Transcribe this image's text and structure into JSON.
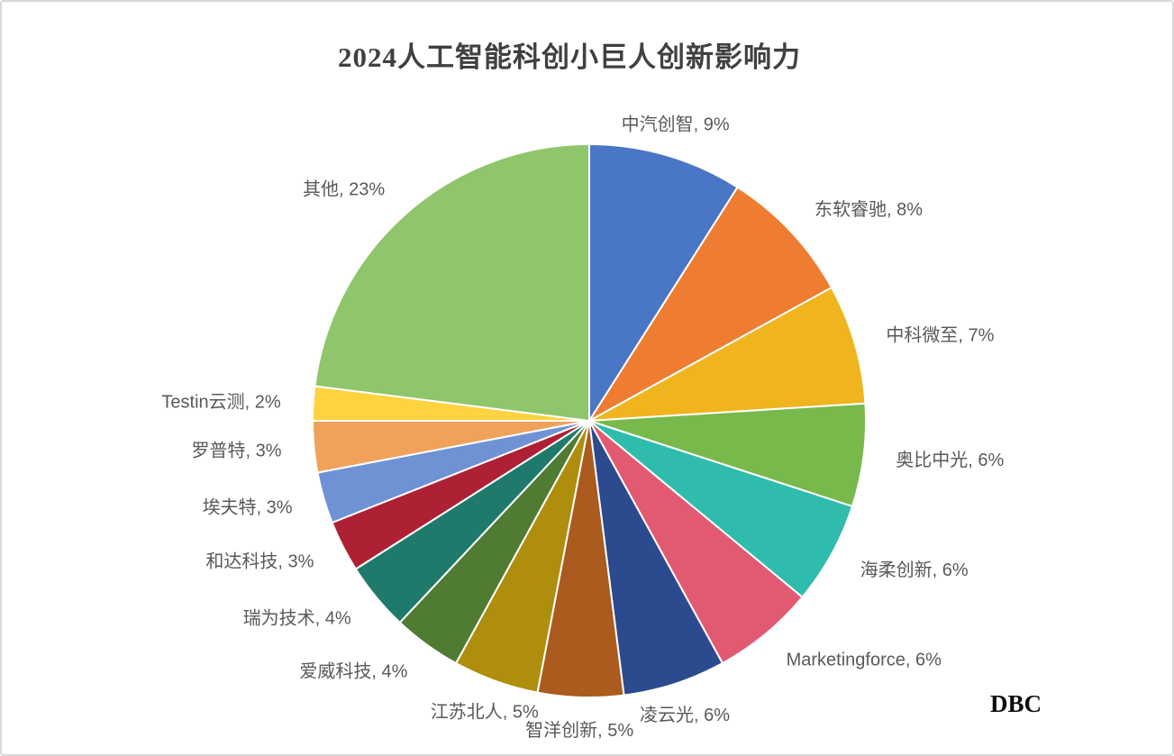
{
  "attribution": "DBC",
  "chart_data": {
    "type": "pie",
    "title": "2024人工智能科创小巨人创新影响力",
    "unit": "percent",
    "start_angle_deg": 0,
    "direction": "clockwise",
    "legend_position": "none",
    "labels_position": "outside",
    "label_format": "{name}, {value}%",
    "slices": [
      {
        "name": "中汽创智",
        "value": 9,
        "color": "#4A76C6"
      },
      {
        "name": "东软睿驰",
        "value": 8,
        "color": "#EE7D31"
      },
      {
        "name": "中科微至",
        "value": 7,
        "color": "#F0B51E"
      },
      {
        "name": "奥比中光",
        "value": 6,
        "color": "#78B94C"
      },
      {
        "name": "海柔创新",
        "value": 6,
        "color": "#2FBCAC"
      },
      {
        "name": "Marketingforce",
        "value": 6,
        "color": "#E25A72"
      },
      {
        "name": "凌云光",
        "value": 6,
        "color": "#2C4A8E"
      },
      {
        "name": "智洋创新",
        "value": 5,
        "color": "#AA5B1D"
      },
      {
        "name": "江苏北人",
        "value": 5,
        "color": "#AF8E0E"
      },
      {
        "name": "爱威科技",
        "value": 4,
        "color": "#4F7B32"
      },
      {
        "name": "瑞为技术",
        "value": 4,
        "color": "#1F7A6C"
      },
      {
        "name": "和达科技",
        "value": 3,
        "color": "#AE2135"
      },
      {
        "name": "埃夫特",
        "value": 3,
        "color": "#6F92D4"
      },
      {
        "name": "罗普特",
        "value": 3,
        "color": "#F1A25A"
      },
      {
        "name": "Testin云测",
        "value": 2,
        "color": "#FFD23F"
      },
      {
        "name": "其他",
        "value": 23,
        "color": "#90C66B"
      }
    ]
  },
  "colors": {
    "background": "#FFFFFF",
    "frame_border": "#D9D9D9",
    "title_text": "#404040",
    "label_text": "#595959",
    "slice_border": "#FFFFFF",
    "attribution_text": "#0D0D0D"
  }
}
